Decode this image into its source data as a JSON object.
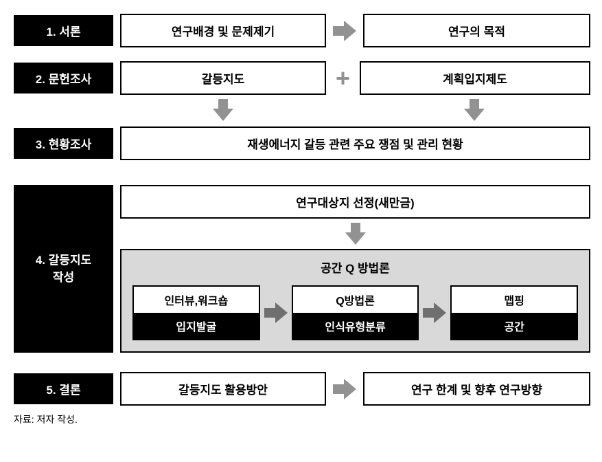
{
  "type": "flowchart",
  "background_color": "#ffffff",
  "label_bg": "#000000",
  "label_fg": "#ffffff",
  "box_border": "#000000",
  "box_bg": "#ffffff",
  "panel_bg": "#d9d9d9",
  "arrow_color": "#929292",
  "arrow_color_dark": "#6f6f6f",
  "font_size_main": 17,
  "rows": {
    "r1": {
      "label": "1. 서론",
      "box1": "연구배경 및 문제제기",
      "box2": "연구의 목적"
    },
    "r2": {
      "label": "2. 문헌조사",
      "box1": "갈등지도",
      "box2": "계획입지제도"
    },
    "r3": {
      "label": "3. 현황조사",
      "box1": "재생에너지 갈등 관련 주요 쟁점 및 관리 현황"
    },
    "r4": {
      "label": "4. 갈등지도\n작성",
      "top_box": "연구대상지 선정(새만금)",
      "panel_title": "공간 Q 방법론",
      "steps": [
        {
          "top": "인터뷰,워크숍",
          "bottom": "입지발굴"
        },
        {
          "top": "Q방법론",
          "bottom": "인식유형분류"
        },
        {
          "top": "맵핑",
          "bottom": "공간"
        }
      ]
    },
    "r5": {
      "label": "5. 결론",
      "box1": "갈등지도 활용방안",
      "box2": "연구 한계 및 향후 연구방향"
    }
  },
  "footnote": "자료: 저자 작성."
}
